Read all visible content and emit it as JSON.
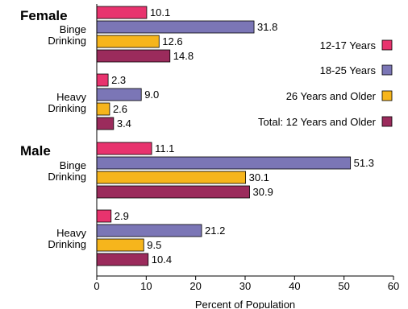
{
  "chart_data": {
    "type": "bar",
    "orientation": "horizontal",
    "xlabel": "Percent of Population",
    "xlim": [
      0,
      60
    ],
    "xticks": [
      0,
      10,
      20,
      30,
      40,
      50,
      60
    ],
    "grid": false,
    "legend_position": "right",
    "series": [
      {
        "name": "12-17 Years",
        "color": "#e8336e"
      },
      {
        "name": "18-25 Years",
        "color": "#7b76b6"
      },
      {
        "name": "26 Years and Older",
        "color": "#f6b51c"
      },
      {
        "name": "Total: 12 Years and Older",
        "color": "#9b2b5c"
      }
    ],
    "groups": [
      {
        "title": "Female",
        "categories": [
          {
            "label_lines": [
              "Binge",
              "Drinking"
            ],
            "values": [
              10.1,
              31.8,
              12.6,
              14.8
            ],
            "value_labels": [
              "10.1",
              "31.8",
              "12.6",
              "14.8"
            ]
          },
          {
            "label_lines": [
              "Heavy",
              "Drinking"
            ],
            "values": [
              2.3,
              9.0,
              2.6,
              3.4
            ],
            "value_labels": [
              "2.3",
              "9.0",
              "2.6",
              "3.4"
            ]
          }
        ]
      },
      {
        "title": "Male",
        "categories": [
          {
            "label_lines": [
              "Binge",
              "Drinking"
            ],
            "values": [
              11.1,
              51.3,
              30.1,
              30.9
            ],
            "value_labels": [
              "11.1",
              "51.3",
              "30.1",
              "30.9"
            ]
          },
          {
            "label_lines": [
              "Heavy",
              "Drinking"
            ],
            "values": [
              2.9,
              21.2,
              9.5,
              10.4
            ],
            "value_labels": [
              "2.9",
              "21.2",
              "9.5",
              "10.4"
            ]
          }
        ]
      }
    ]
  }
}
